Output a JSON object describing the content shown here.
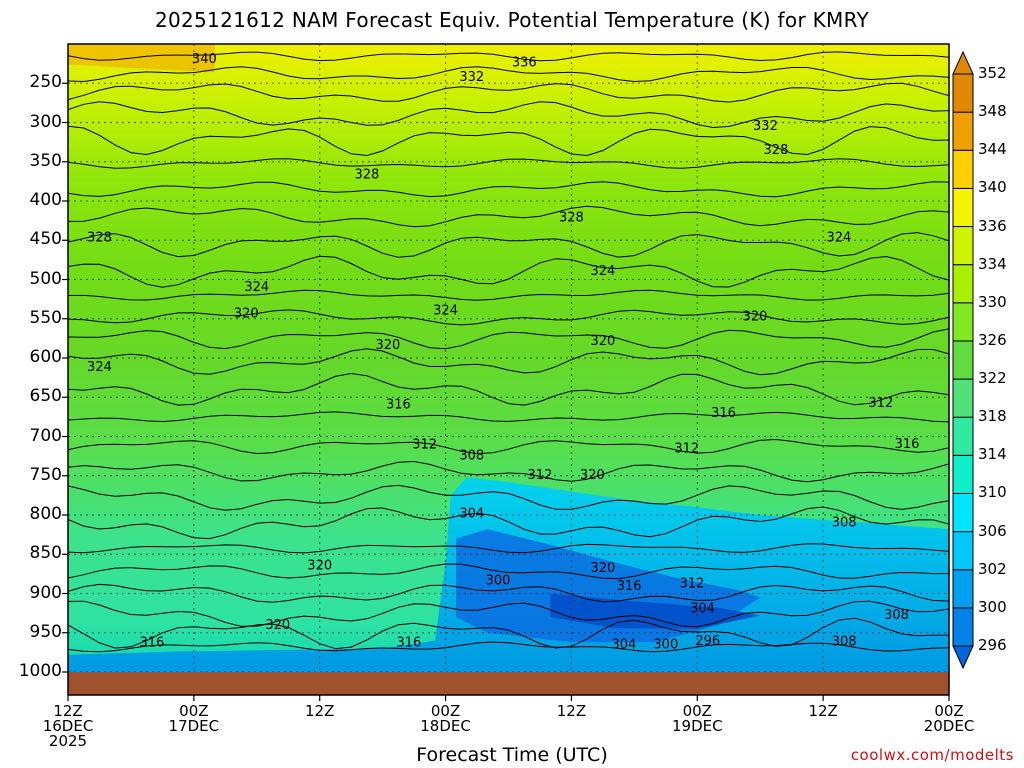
{
  "title": "2025121612 NAM Forecast Equiv. Potential Temperature (K) for KMRY",
  "xlabel": "Forecast Time (UTC)",
  "credit": "coolwx.com/modelts",
  "chart_data": {
    "type": "contour",
    "variable": "Equivalent potential temperature (K)",
    "y_axis": {
      "ticks": [
        "250",
        "300",
        "350",
        "400",
        "450",
        "500",
        "550",
        "600",
        "650",
        "700",
        "750",
        "800",
        "850",
        "900",
        "950",
        "1000"
      ],
      "range": [
        200,
        1000
      ],
      "inverted": true
    },
    "x_axis": {
      "range_hours": [
        0,
        84
      ],
      "ticks": [
        {
          "hour": 0,
          "line1": "12Z",
          "line2": "16DEC",
          "line3": "2025"
        },
        {
          "hour": 12,
          "line1": "00Z",
          "line2": "17DEC",
          "line3": ""
        },
        {
          "hour": 24,
          "line1": "12Z",
          "line2": "",
          "line3": ""
        },
        {
          "hour": 36,
          "line1": "00Z",
          "line2": "18DEC",
          "line3": ""
        },
        {
          "hour": 48,
          "line1": "12Z",
          "line2": "",
          "line3": ""
        },
        {
          "hour": 60,
          "line1": "00Z",
          "line2": "19DEC",
          "line3": ""
        },
        {
          "hour": 72,
          "line1": "12Z",
          "line2": "",
          "line3": ""
        },
        {
          "hour": 84,
          "line1": "00Z",
          "line2": "20DEC",
          "line3": ""
        }
      ]
    },
    "colorbar": {
      "levels": [
        296,
        300,
        302,
        306,
        310,
        314,
        318,
        322,
        326,
        330,
        334,
        336,
        340,
        344,
        348,
        352
      ],
      "colors": [
        "#0064dc",
        "#0082e6",
        "#00a0f0",
        "#00c8fa",
        "#00e6ff",
        "#10f0c8",
        "#30eaa0",
        "#50e278",
        "#60dc40",
        "#80e820",
        "#a8f000",
        "#d0f400",
        "#f4f400",
        "#ffd000",
        "#f0a000",
        "#e08800"
      ]
    },
    "grid": true,
    "contour_labels": [
      {
        "value": 340,
        "hour": 13,
        "p": 218
      },
      {
        "value": 336,
        "hour": 43.5,
        "p": 222
      },
      {
        "value": 332,
        "hour": 38.5,
        "p": 241
      },
      {
        "value": 332,
        "hour": 66.5,
        "p": 303
      },
      {
        "value": 328,
        "hour": 67.5,
        "p": 334
      },
      {
        "value": 328,
        "hour": 28.5,
        "p": 365
      },
      {
        "value": 328,
        "hour": 48,
        "p": 420
      },
      {
        "value": 328,
        "hour": 3,
        "p": 445
      },
      {
        "value": 324,
        "hour": 73.5,
        "p": 445
      },
      {
        "value": 324,
        "hour": 51,
        "p": 488
      },
      {
        "value": 324,
        "hour": 18,
        "p": 508
      },
      {
        "value": 324,
        "hour": 36,
        "p": 538
      },
      {
        "value": 320,
        "hour": 17,
        "p": 542
      },
      {
        "value": 320,
        "hour": 65.5,
        "p": 546
      },
      {
        "value": 320,
        "hour": 51,
        "p": 577
      },
      {
        "value": 320,
        "hour": 30.5,
        "p": 582
      },
      {
        "value": 324,
        "hour": 3,
        "p": 610
      },
      {
        "value": 316,
        "hour": 31.5,
        "p": 658
      },
      {
        "value": 316,
        "hour": 62.5,
        "p": 669
      },
      {
        "value": 312,
        "hour": 77.5,
        "p": 656
      },
      {
        "value": 316,
        "hour": 80,
        "p": 708
      },
      {
        "value": 312,
        "hour": 34,
        "p": 709
      },
      {
        "value": 308,
        "hour": 38.5,
        "p": 723
      },
      {
        "value": 312,
        "hour": 59,
        "p": 714
      },
      {
        "value": 312,
        "hour": 45,
        "p": 748
      },
      {
        "value": 320,
        "hour": 50,
        "p": 748
      },
      {
        "value": 304,
        "hour": 38.5,
        "p": 797
      },
      {
        "value": 308,
        "hour": 74,
        "p": 808
      },
      {
        "value": 320,
        "hour": 24,
        "p": 863
      },
      {
        "value": 320,
        "hour": 51,
        "p": 866
      },
      {
        "value": 300,
        "hour": 41,
        "p": 882
      },
      {
        "value": 316,
        "hour": 53.5,
        "p": 889
      },
      {
        "value": 312,
        "hour": 59.5,
        "p": 886
      },
      {
        "value": 304,
        "hour": 60.5,
        "p": 918
      },
      {
        "value": 308,
        "hour": 79,
        "p": 926
      },
      {
        "value": 320,
        "hour": 20,
        "p": 939
      },
      {
        "value": 296,
        "hour": 61,
        "p": 959
      },
      {
        "value": 308,
        "hour": 74,
        "p": 960
      },
      {
        "value": 316,
        "hour": 8,
        "p": 961
      },
      {
        "value": 316,
        "hour": 32.5,
        "p": 961
      },
      {
        "value": 304,
        "hour": 53,
        "p": 964
      },
      {
        "value": 300,
        "hour": 57,
        "p": 964
      }
    ]
  }
}
